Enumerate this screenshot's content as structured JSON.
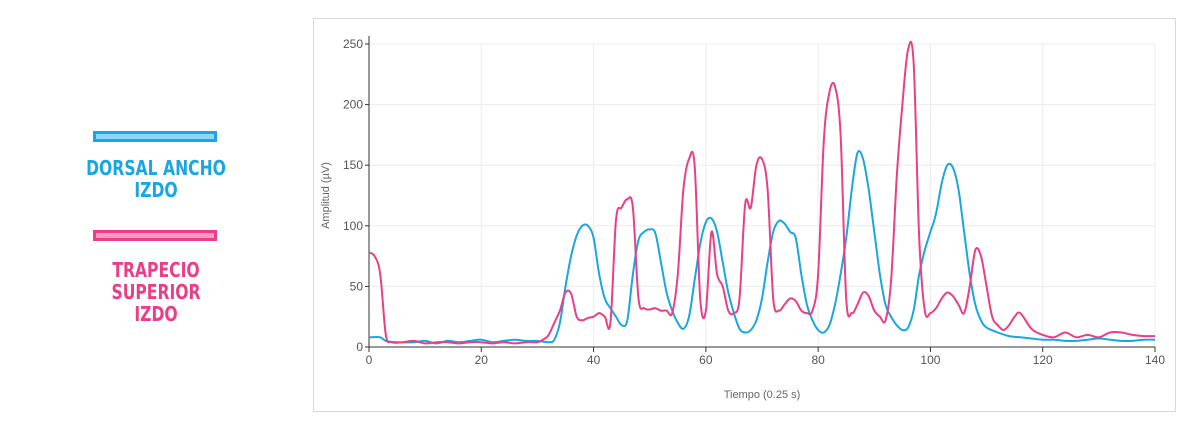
{
  "legend": {
    "series_a": "DORSAL ANCHO\nIZDO",
    "series_b": "TRAPECIO SUPERIOR\nIZDO"
  },
  "chart_data": {
    "type": "line",
    "xlabel": "Tiempo (0.25 s)",
    "ylabel": "Amplitud (µV)",
    "xlim": [
      0,
      140
    ],
    "ylim": [
      0,
      250
    ],
    "xticks": [
      0,
      20,
      40,
      60,
      80,
      100,
      120,
      140
    ],
    "yticks": [
      0,
      50,
      100,
      150,
      200,
      250
    ],
    "grid": true,
    "series": [
      {
        "name": "DORSAL ANCHO IZDO",
        "color": "#1aa6e0",
        "x": [
          0,
          2,
          3,
          5,
          8,
          10,
          12,
          14,
          16,
          18,
          20,
          22,
          24,
          26,
          28,
          30,
          32,
          33,
          34,
          35,
          36,
          37,
          38,
          39,
          40,
          41,
          42,
          43,
          44,
          45,
          46,
          47,
          48,
          49,
          50,
          51,
          52,
          53,
          54,
          55,
          56,
          57,
          58,
          59,
          60,
          61,
          62,
          63,
          64,
          65,
          66,
          67,
          68,
          69,
          70,
          71,
          72,
          73,
          74,
          75,
          76,
          77,
          78,
          79,
          80,
          81,
          82,
          83,
          84,
          85,
          86,
          87,
          88,
          89,
          90,
          91,
          92,
          93,
          94,
          95,
          96,
          97,
          98,
          99,
          100,
          101,
          102,
          103,
          104,
          105,
          106,
          107,
          108,
          109,
          110,
          112,
          114,
          116,
          118,
          120,
          122,
          124,
          126,
          128,
          130,
          132,
          134,
          136,
          138,
          140
        ],
        "y": [
          8,
          8,
          5,
          4,
          4,
          5,
          3,
          5,
          4,
          5,
          6,
          4,
          5,
          6,
          5,
          5,
          4,
          6,
          20,
          50,
          75,
          92,
          100,
          100,
          90,
          60,
          40,
          32,
          25,
          18,
          22,
          60,
          88,
          95,
          97,
          94,
          70,
          45,
          30,
          20,
          15,
          25,
          55,
          85,
          103,
          106,
          95,
          70,
          45,
          28,
          15,
          12,
          14,
          22,
          40,
          70,
          95,
          104,
          102,
          95,
          90,
          60,
          35,
          22,
          14,
          12,
          18,
          35,
          60,
          90,
          130,
          160,
          155,
          130,
          95,
          60,
          35,
          25,
          18,
          14,
          16,
          30,
          60,
          80,
          95,
          110,
          135,
          150,
          148,
          130,
          95,
          60,
          35,
          22,
          16,
          12,
          9,
          8,
          7,
          6,
          6,
          5,
          5,
          6,
          7,
          6,
          5,
          5,
          6,
          6
        ]
      },
      {
        "name": "TRAPECIO SUPERIOR IZDO",
        "color": "#ea3f86",
        "x": [
          0,
          1,
          2,
          3,
          4,
          6,
          8,
          10,
          12,
          14,
          16,
          18,
          20,
          22,
          24,
          26,
          28,
          30,
          31,
          32,
          33,
          34,
          35,
          36,
          37,
          38,
          39,
          40,
          41,
          42,
          43,
          44,
          45,
          46,
          47,
          48,
          49,
          50,
          51,
          52,
          53,
          54,
          55,
          56,
          57,
          58,
          59,
          60,
          61,
          62,
          63,
          64,
          65,
          66,
          67,
          68,
          69,
          70,
          71,
          72,
          73,
          74,
          75,
          76,
          77,
          78,
          79,
          80,
          81,
          82,
          83,
          84,
          85,
          86,
          87,
          88,
          89,
          90,
          91,
          92,
          93,
          94,
          95,
          96,
          97,
          98,
          99,
          100,
          101,
          102,
          103,
          104,
          105,
          106,
          107,
          108,
          109,
          110,
          111,
          112,
          113,
          114,
          115,
          116,
          118,
          120,
          122,
          124,
          126,
          128,
          130,
          132,
          134,
          136,
          138,
          140
        ],
        "y": [
          78,
          75,
          60,
          10,
          4,
          4,
          5,
          3,
          4,
          4,
          3,
          4,
          4,
          3,
          4,
          3,
          4,
          4,
          6,
          10,
          20,
          30,
          45,
          44,
          25,
          22,
          24,
          25,
          28,
          25,
          20,
          105,
          115,
          122,
          115,
          40,
          32,
          31,
          32,
          30,
          30,
          28,
          60,
          130,
          155,
          150,
          40,
          30,
          95,
          60,
          50,
          30,
          28,
          40,
          118,
          115,
          150,
          155,
          130,
          40,
          30,
          35,
          40,
          38,
          30,
          28,
          30,
          60,
          170,
          210,
          215,
          175,
          40,
          28,
          35,
          45,
          42,
          30,
          25,
          22,
          55,
          140,
          200,
          245,
          235,
          90,
          30,
          28,
          32,
          40,
          45,
          42,
          35,
          28,
          50,
          80,
          75,
          50,
          25,
          18,
          14,
          18,
          25,
          28,
          15,
          10,
          8,
          12,
          8,
          10,
          8,
          12,
          12,
          10,
          9,
          9
        ]
      }
    ]
  }
}
